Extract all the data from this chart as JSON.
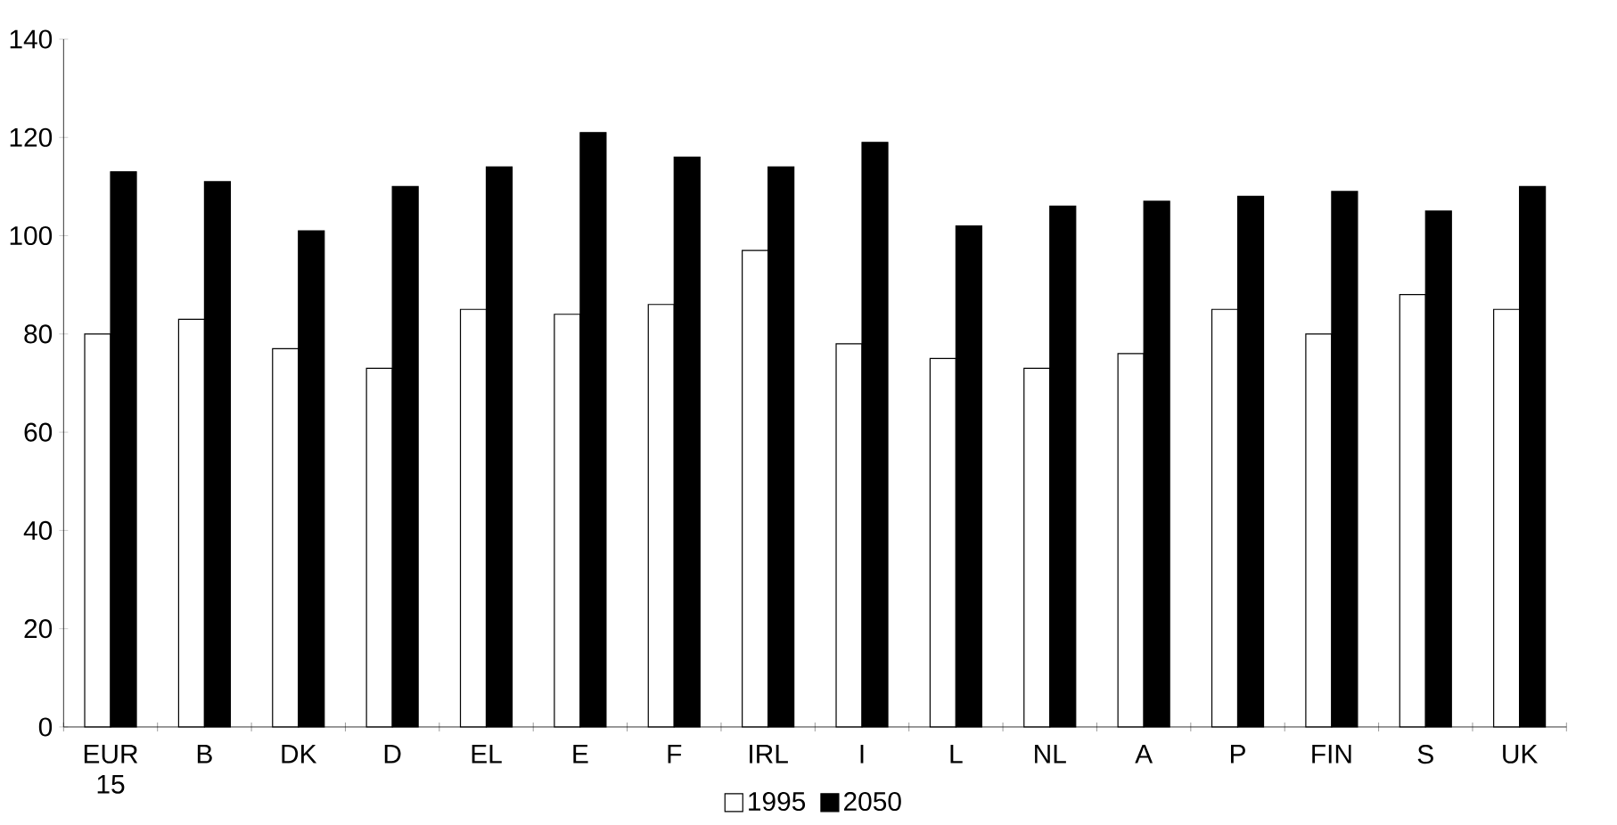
{
  "chart_data": {
    "type": "bar",
    "categories": [
      "EUR 15",
      "B",
      "DK",
      "D",
      "EL",
      "E",
      "F",
      "IRL",
      "I",
      "L",
      "NL",
      "A",
      "P",
      "FIN",
      "S",
      "UK"
    ],
    "series": [
      {
        "name": "1995",
        "color": "#ffffff",
        "values": [
          80,
          83,
          77,
          73,
          85,
          84,
          86,
          97,
          78,
          75,
          73,
          76,
          85,
          80,
          88,
          85
        ]
      },
      {
        "name": "2050",
        "color": "#000000",
        "values": [
          113,
          111,
          101,
          110,
          114,
          121,
          116,
          114,
          119,
          102,
          106,
          107,
          108,
          109,
          105,
          110
        ]
      }
    ],
    "ylim": [
      0,
      140
    ],
    "yticks": [
      0,
      20,
      40,
      60,
      80,
      100,
      120,
      140
    ],
    "grid": false,
    "legend": "bottom"
  }
}
